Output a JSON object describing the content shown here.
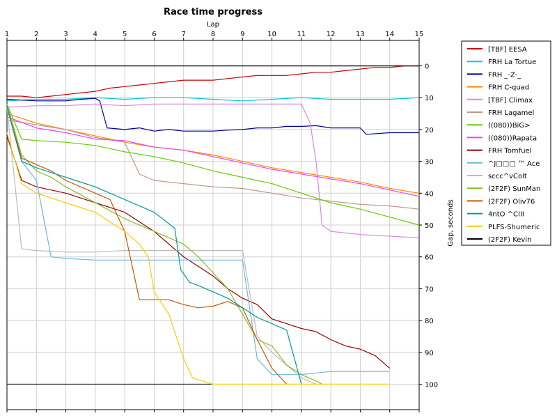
{
  "chart_data": {
    "type": "line",
    "title": "Race time progress",
    "xlabel": "Lap",
    "ylabel": "Gap, seconds",
    "xlim": [
      1,
      15
    ],
    "ylim": [
      -8,
      108
    ],
    "y_inverted": true,
    "x_ticks": [
      1,
      2,
      3,
      4,
      5,
      6,
      7,
      8,
      9,
      10,
      11,
      12,
      13,
      14,
      15
    ],
    "y_ticks": [
      0,
      10,
      20,
      30,
      40,
      50,
      60,
      70,
      80,
      90,
      100
    ],
    "grid": true,
    "legend_position": "right",
    "series": [
      {
        "name": "[TBF] EESA",
        "color": "#cc0000",
        "x": [
          1,
          1.5,
          2,
          2.5,
          3,
          3.5,
          4,
          4.5,
          5,
          5.5,
          6,
          6.5,
          7,
          7.5,
          8,
          8.5,
          9,
          9.5,
          10,
          10.5,
          11,
          11.5,
          12,
          12.5,
          13,
          13.5,
          14,
          14.5,
          15
        ],
        "y": [
          9.5,
          9.5,
          10,
          9.5,
          9,
          8.5,
          8,
          7,
          6.5,
          6,
          5.5,
          5,
          4.5,
          4.5,
          4.5,
          4,
          3.5,
          3,
          3,
          3,
          2.5,
          2,
          2,
          1.5,
          1,
          0.5,
          0.5,
          0,
          0
        ]
      },
      {
        "name": "FRH La Tortue",
        "color": "#00cccc",
        "x": [
          1,
          2,
          3,
          4,
          5,
          6,
          7,
          8,
          9,
          10,
          11,
          12,
          13,
          14,
          15
        ],
        "y": [
          11,
          10.5,
          10.5,
          10,
          10.5,
          10,
          10,
          10.5,
          11,
          10.5,
          10,
          10.5,
          10.5,
          10.5,
          10
        ]
      },
      {
        "name": "FRH _-Z-_",
        "color": "#000099",
        "x": [
          1,
          2,
          3,
          3.5,
          4,
          4.15,
          4.4,
          5,
          5.5,
          6,
          6.5,
          7,
          7.5,
          8,
          8.5,
          9,
          9.5,
          10,
          10.5,
          11,
          11.5,
          12,
          12.5,
          13,
          13.2,
          14,
          15
        ],
        "y": [
          10.5,
          11,
          11,
          10.5,
          10.2,
          11,
          19.5,
          20,
          19.5,
          20.5,
          20,
          20.5,
          20.5,
          20.5,
          20.2,
          20,
          19.5,
          19.5,
          19,
          19,
          18.8,
          19.5,
          19.5,
          19.5,
          21.5,
          21,
          21
        ]
      },
      {
        "name": "FRH C-quad",
        "color": "#ff8800",
        "x": [
          1,
          2,
          3,
          4,
          5,
          6,
          7,
          8,
          9,
          10,
          11,
          12,
          13,
          14,
          15
        ],
        "y": [
          15,
          18,
          20,
          22,
          24,
          25.5,
          26.5,
          28,
          30,
          32,
          33.5,
          35,
          36.5,
          38.5,
          40
        ]
      },
      {
        "name": "[TBF] Climax",
        "color": "#dd88dd",
        "x": [
          1,
          2,
          3,
          4,
          5,
          6,
          7,
          8,
          9,
          10,
          11,
          11.3,
          11.5,
          11.7,
          12,
          13,
          14,
          15
        ],
        "y": [
          13,
          12.5,
          12.5,
          12,
          12.5,
          12,
          12,
          12,
          12,
          12,
          12,
          18,
          30,
          50,
          52,
          53,
          53.5,
          54
        ]
      },
      {
        "name": "FRH Lagamel",
        "color": "#bb9988",
        "x": [
          1,
          2,
          3,
          4,
          5,
          5.3,
          5.5,
          6,
          7,
          8,
          9,
          10,
          11,
          12,
          13,
          14,
          15
        ],
        "y": [
          17,
          18.5,
          20,
          22.5,
          24,
          30,
          34,
          36,
          37,
          38,
          38.5,
          40,
          41.5,
          42.5,
          43.5,
          44,
          45
        ]
      },
      {
        "name": "((080))BiG>",
        "color": "#66cc00",
        "x": [
          1,
          1.5,
          2,
          3,
          4,
          5,
          6,
          7,
          8,
          9,
          10,
          11,
          12,
          13,
          14,
          15
        ],
        "y": [
          12,
          23,
          23.5,
          24,
          25,
          27,
          28.5,
          30.5,
          33,
          35,
          37,
          40,
          43,
          45,
          47.5,
          50
        ]
      },
      {
        "name": "((080))Rapata",
        "color": "#ee44ee",
        "x": [
          1,
          2,
          3,
          4,
          5,
          6,
          7,
          8,
          9,
          10,
          11,
          12,
          13,
          14,
          15
        ],
        "y": [
          16,
          19.5,
          21,
          23,
          23.5,
          25.5,
          26.5,
          28.5,
          30.5,
          32.5,
          34,
          35.5,
          37,
          39,
          41
        ]
      },
      {
        "name": "FRH Tomfuel",
        "color": "#990000",
        "x": [
          1,
          1.5,
          2,
          3,
          4,
          5,
          6,
          7,
          7.5,
          8,
          8.5,
          9,
          9.5,
          10,
          10.5,
          11,
          11.5,
          12,
          12.5,
          13,
          13.5,
          14
        ],
        "y": [
          22,
          36,
          38,
          40,
          43,
          46,
          52,
          60,
          63,
          66,
          70,
          73,
          75,
          79.5,
          81,
          82.5,
          83.5,
          86,
          88,
          89,
          91,
          95
        ]
      },
      {
        "name": "^J□□□ ™ Ace",
        "color": "#66bbdd",
        "x": [
          1,
          1.5,
          2,
          2.5,
          3,
          4,
          5,
          6,
          7,
          8,
          9,
          9.5,
          10,
          11,
          12,
          13,
          14
        ],
        "y": [
          13,
          30,
          36,
          60,
          60.5,
          61,
          61,
          61,
          61,
          61,
          61,
          92,
          97,
          97,
          96,
          96,
          96
        ]
      },
      {
        "name": "sccc^vColt",
        "color": "#bbbbbb",
        "x": [
          1,
          1.5,
          2,
          3,
          4,
          5,
          6,
          7,
          8,
          9,
          9.5,
          10,
          10.5,
          11,
          11.5
        ],
        "y": [
          13,
          57.5,
          58,
          58.5,
          58.5,
          58,
          58,
          58,
          58,
          58,
          85,
          90,
          94,
          98,
          100
        ]
      },
      {
        "name": "(2F2F) SunMan",
        "color": "#88bb22",
        "x": [
          1,
          1.5,
          2,
          2.5,
          3,
          4,
          5,
          6,
          6.5,
          7,
          7.5,
          8,
          8.5,
          9,
          9.5,
          10,
          10.5,
          11,
          11.5,
          11.7
        ],
        "y": [
          12,
          28,
          33,
          35,
          38,
          43,
          48,
          52,
          54,
          56,
          60,
          65,
          70,
          78,
          86,
          88,
          94,
          97,
          99,
          100
        ]
      },
      {
        "name": "(2F2F) Oliv76",
        "color": "#cc5500",
        "x": [
          1,
          1.5,
          2,
          2.5,
          3,
          4,
          4.5,
          5,
          5.5,
          6,
          6.5,
          7,
          7.5,
          8,
          8.5,
          9,
          9.5,
          10,
          10.5
        ],
        "y": [
          13,
          29,
          31,
          33,
          36,
          40,
          42,
          52,
          73.5,
          73.5,
          73.5,
          75,
          76,
          75.5,
          74,
          76,
          86,
          95,
          100
        ]
      },
      {
        "name": "4ntO ^CIII",
        "color": "#009999",
        "x": [
          1,
          1.5,
          2,
          3,
          4,
          5,
          6,
          6.7,
          6.9,
          7.2,
          7.5,
          8,
          8.5,
          9,
          9.5,
          10,
          10.5,
          11
        ],
        "y": [
          13,
          30,
          32,
          35,
          38,
          42,
          46,
          51,
          64,
          68,
          69,
          71,
          73,
          76,
          79,
          81,
          83,
          100
        ]
      },
      {
        "name": "PLFS-Shumeric",
        "color": "#ffcc00",
        "x": [
          1,
          1.5,
          2,
          3,
          4,
          5,
          5.5,
          5.8,
          6,
          6.5,
          7,
          7.3,
          8,
          9,
          10,
          11,
          12,
          13,
          14
        ],
        "y": [
          21,
          37,
          40,
          43,
          46,
          52,
          56,
          60,
          71,
          78,
          92,
          98,
          100,
          100,
          100,
          100,
          100,
          100,
          100
        ]
      },
      {
        "name": "(2F2F) Kevin",
        "color": "#000000",
        "x": [
          1,
          15
        ],
        "y": [
          0,
          0
        ]
      }
    ],
    "extra_lines": [
      {
        "color": "#000000",
        "x": [
          1,
          8
        ],
        "y": [
          100,
          100
        ]
      }
    ]
  }
}
